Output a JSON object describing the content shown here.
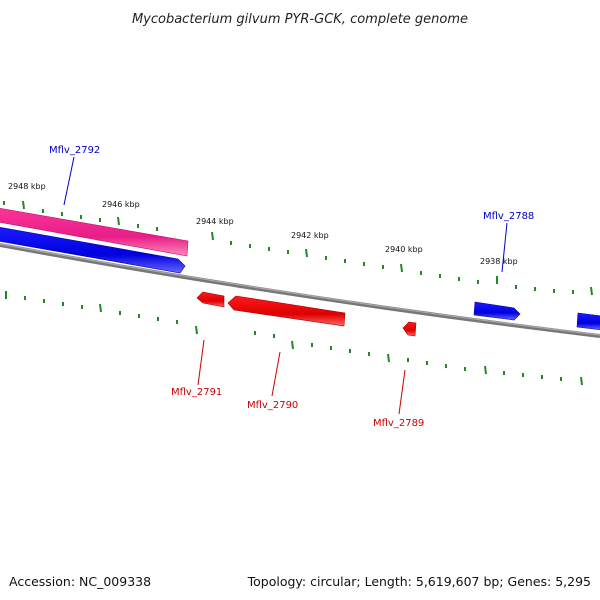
{
  "title": "Mycobacterium gilvum PYR-GCK, complete genome",
  "footer": {
    "accession": "Accession: NC_009338",
    "summary": "Topology: circular; Length: 5,619,607 bp; Genes: 5,295"
  },
  "colors": {
    "forward_gene": "#0000ee",
    "reverse_gene": "#ee0000",
    "highlight_feature": "#ff3399",
    "backbone": "#888888",
    "ticks": "#228822",
    "forward_label": "#0000cc",
    "reverse_label": "#cc0000"
  },
  "ticks": {
    "forward_labels": [
      "2948 kbp",
      "2946 kbp",
      "2944 kbp",
      "2942 kbp",
      "2940 kbp",
      "2938 kbp"
    ]
  },
  "genes": [
    {
      "label": "Mflv_2792",
      "strand": "forward"
    },
    {
      "label": "Mflv_2791",
      "strand": "reverse"
    },
    {
      "label": "Mflv_2790",
      "strand": "reverse"
    },
    {
      "label": "Mflv_2789",
      "strand": "reverse"
    },
    {
      "label": "Mflv_2788",
      "strand": "forward"
    }
  ]
}
